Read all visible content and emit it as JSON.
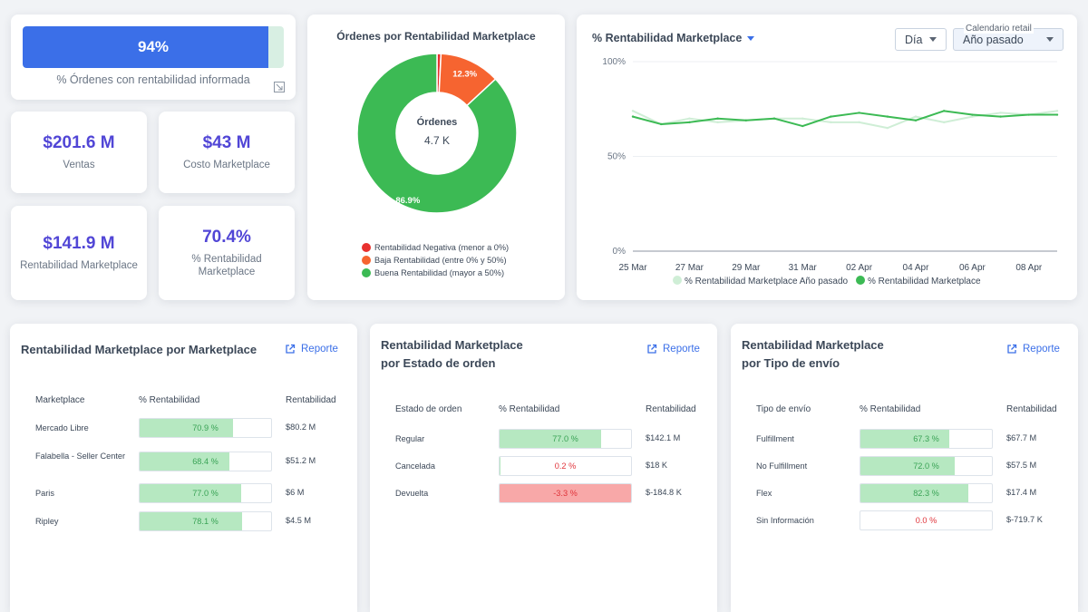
{
  "colors": {
    "accent": "#3b6fe8",
    "kpi_value": "#5146d6",
    "green": "#3cba54",
    "green_light": "#cfeed6",
    "orange": "#f66430",
    "red": "#e8312f",
    "bar_green": "#b6e8c1",
    "bar_red": "#f8a8a8",
    "text_green": "#3aa356",
    "text_red": "#e0353b"
  },
  "progress": {
    "value_label": "94%",
    "fraction": 0.94,
    "caption": "% Órdenes con rentabilidad informada"
  },
  "kpis": [
    {
      "value": "$201.6 M",
      "label": "Ventas"
    },
    {
      "value": "$43 M",
      "label": "Costo Marketplace"
    },
    {
      "value": "$141.9 M",
      "label": "Rentabilidad Marketplace"
    },
    {
      "value": "70.4%",
      "label": "% Rentabilidad Marketplace"
    }
  ],
  "donut": {
    "title": "Órdenes por Rentabilidad Marketplace",
    "center_title": "Órdenes",
    "center_value": "4.7 K",
    "legend": [
      "Rentabilidad Negativa (menor a 0%)",
      "Baja Rentabilidad (entre 0% y 50%)",
      "Buena Rentabilidad (mayor a 50%)"
    ]
  },
  "line": {
    "title": "% Rentabilidad Marketplace",
    "period_select": "Día",
    "calendar_label": "Calendario retail",
    "calendar_select": "Año pasado",
    "legend_prev": "% Rentabilidad Marketplace Año pasado",
    "legend_curr": "% Rentabilidad Marketplace"
  },
  "tables": [
    {
      "title_lines": [
        "Rentabilidad Marketplace por Marketplace"
      ],
      "report_label": "Reporte",
      "headers": [
        "Marketplace",
        "% Rentabilidad",
        "Rentabilidad"
      ],
      "rows": [
        {
          "label": "Mercado Libre",
          "pct": "70.9 %",
          "value": "$80.2 M",
          "frac": 0.709,
          "sign": "pos"
        },
        {
          "label": "Falabella - Seller Center",
          "pct": "68.4 %",
          "value": "$51.2 M",
          "frac": 0.684,
          "sign": "pos"
        },
        {
          "label": "Paris",
          "pct": "77.0 %",
          "value": "$6 M",
          "frac": 0.77,
          "sign": "pos"
        },
        {
          "label": "Ripley",
          "pct": "78.1 %",
          "value": "$4.5 M",
          "frac": 0.781,
          "sign": "pos"
        }
      ]
    },
    {
      "title_lines": [
        "Rentabilidad Marketplace",
        "por Estado de orden"
      ],
      "report_label": "Reporte",
      "headers": [
        "Estado de orden",
        "% Rentabilidad",
        "Rentabilidad"
      ],
      "rows": [
        {
          "label": "Regular",
          "pct": "77.0 %",
          "value": "$142.1 M",
          "frac": 0.77,
          "sign": "pos"
        },
        {
          "label": "Cancelada",
          "pct": "0.2 %",
          "value": "$18 K",
          "frac": 0.002,
          "sign": "zero"
        },
        {
          "label": "Devuelta",
          "pct": "-3.3 %",
          "value": "$-184.8 K",
          "frac": 1.0,
          "sign": "neg"
        }
      ]
    },
    {
      "title_lines": [
        "Rentabilidad Marketplace",
        "por Tipo de envío"
      ],
      "report_label": "Reporte",
      "headers": [
        "Tipo de envío",
        "% Rentabilidad",
        "Rentabilidad"
      ],
      "rows": [
        {
          "label": "Fulfillment",
          "pct": "67.3 %",
          "value": "$67.7 M",
          "frac": 0.673,
          "sign": "pos"
        },
        {
          "label": "No Fulfillment",
          "pct": "72.0 %",
          "value": "$57.5 M",
          "frac": 0.72,
          "sign": "pos"
        },
        {
          "label": "Flex",
          "pct": "82.3 %",
          "value": "$17.4 M",
          "frac": 0.823,
          "sign": "pos"
        },
        {
          "label": "Sin Información",
          "pct": "0.0 %",
          "value": "$-719.7 K",
          "frac": 0.0,
          "sign": "zero"
        }
      ]
    }
  ],
  "chart_data": [
    {
      "type": "pie",
      "title": "Órdenes por Rentabilidad Marketplace",
      "categories": [
        "Rentabilidad Negativa (menor a 0%)",
        "Baja Rentabilidad (entre 0% y 50%)",
        "Buena Rentabilidad (mayor a 50%)"
      ],
      "values": [
        0.8,
        12.3,
        86.9
      ],
      "value_labels": [
        "",
        "12.3%",
        "86.9%"
      ],
      "colors": [
        "#e8312f",
        "#f66430",
        "#3cba54"
      ],
      "donut": true,
      "legend": "bottom"
    },
    {
      "type": "line",
      "title": "% Rentabilidad Marketplace",
      "x_tick_labels": [
        "25 Mar",
        "27 Mar",
        "29 Mar",
        "31 Mar",
        "02 Apr",
        "04 Apr",
        "06 Apr",
        "08 Apr"
      ],
      "y_tick_labels": [
        "0%",
        "50%",
        "100%"
      ],
      "x": [
        "25 Mar",
        "26 Mar",
        "27 Mar",
        "28 Mar",
        "29 Mar",
        "30 Mar",
        "31 Mar",
        "01 Apr",
        "02 Apr",
        "03 Apr",
        "04 Apr",
        "05 Apr",
        "06 Apr",
        "07 Apr",
        "08 Apr",
        "09 Apr"
      ],
      "ylim": [
        0,
        100
      ],
      "grid": "horizontal",
      "legend": "bottom",
      "series": [
        {
          "name": "% Rentabilidad Marketplace Año pasado",
          "color": "#cfeed6",
          "values": [
            74,
            67,
            70,
            68,
            69,
            70,
            70,
            68,
            68,
            65,
            71,
            68,
            71,
            73,
            72,
            74
          ]
        },
        {
          "name": "% Rentabilidad Marketplace",
          "color": "#3cba54",
          "values": [
            71,
            67,
            68,
            70,
            69,
            70,
            66,
            71,
            73,
            71,
            69,
            74,
            72,
            71,
            72,
            72
          ]
        }
      ]
    }
  ]
}
